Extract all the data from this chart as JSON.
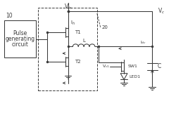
{
  "fig_width": 2.5,
  "fig_height": 1.64,
  "dpi": 100,
  "bg_color": "#ffffff",
  "line_color": "#3a3a3a",
  "lw": 0.75,
  "labels": {
    "block_label": "10",
    "block_line1": "Pulse",
    "block_line2": "generating",
    "block_line3": "circuit",
    "Vin": "V$_{in}$",
    "Ih": "I$_{h}$",
    "label20": "20",
    "T1": "T1",
    "T2": "T2",
    "L": "L",
    "Vc1": "V$_{c1}$",
    "SW1": "SW1",
    "LED1": "LED1",
    "Vc": "V$_c$",
    "Idc": "I$_{dc}$",
    "C": "C"
  }
}
